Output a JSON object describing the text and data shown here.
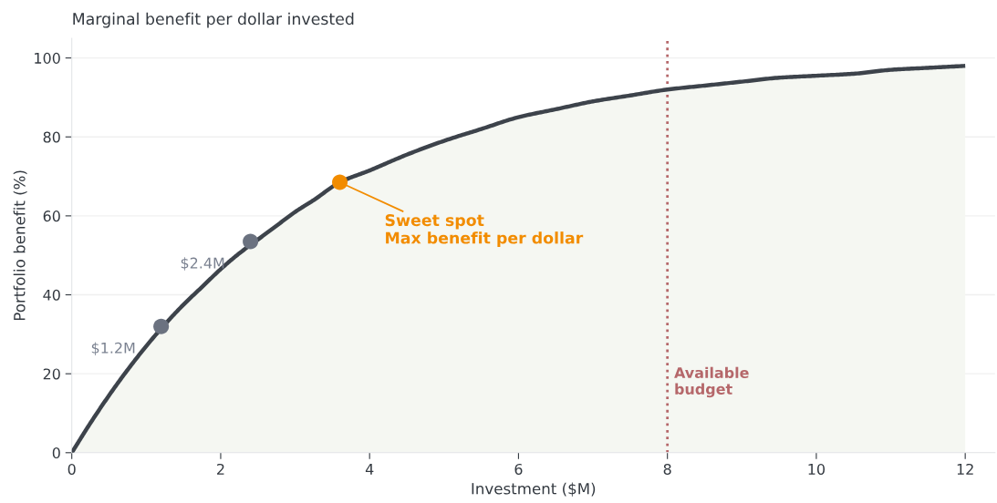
{
  "chart_data": {
    "type": "area",
    "title": "Marginal benefit per dollar invested",
    "xlabel": "Investment ($M)",
    "ylabel": "Portfolio benefit (%)",
    "xlim": [
      0,
      12.4
    ],
    "ylim": [
      0,
      105
    ],
    "xticks": [
      0,
      2,
      4,
      6,
      8,
      10,
      12
    ],
    "yticks": [
      0,
      20,
      40,
      60,
      80,
      100
    ],
    "grid": "y",
    "series": [
      {
        "color": "#3d434b",
        "x": [
          0,
          0.25,
          0.5,
          0.75,
          1,
          1.25,
          1.5,
          1.75,
          2,
          2.25,
          2.5,
          2.75,
          3,
          3.25,
          3.6,
          4,
          4.5,
          5,
          5.5,
          6,
          6.5,
          7,
          7.5,
          8,
          8.5,
          9,
          9.5,
          10,
          10.5,
          11,
          11.5,
          12
        ],
        "values": [
          0,
          7.5,
          14.5,
          21,
          27,
          32.5,
          37.5,
          42,
          46.5,
          50.5,
          54,
          57.5,
          61,
          64,
          68.5,
          71.5,
          75.5,
          79,
          82,
          85,
          87,
          89,
          90.5,
          92,
          93,
          94,
          95,
          95.5,
          96,
          97,
          97.5,
          98
        ]
      },
      {
        "type": "scatter",
        "x": [
          1.2,
          2.4,
          3.6
        ],
        "values": [
          32,
          53.5,
          68.5
        ],
        "colors": [
          "#6b7280",
          "#6b7280",
          "#f28c00"
        ]
      }
    ],
    "ref_lines": [
      {
        "axis": "x",
        "value": 8,
        "label": "Available\nbudget",
        "color": "#b5676a",
        "line_style": "dotted"
      }
    ],
    "annotations": [
      {
        "text": "$1.2M",
        "x": 1.2,
        "y": 32
      },
      {
        "text": "$2.4M",
        "x": 2.4,
        "y": 53.5
      },
      {
        "text": "Sweet spot\nMax benefit per dollar",
        "x": 3.6,
        "y": 68.5
      }
    ]
  }
}
